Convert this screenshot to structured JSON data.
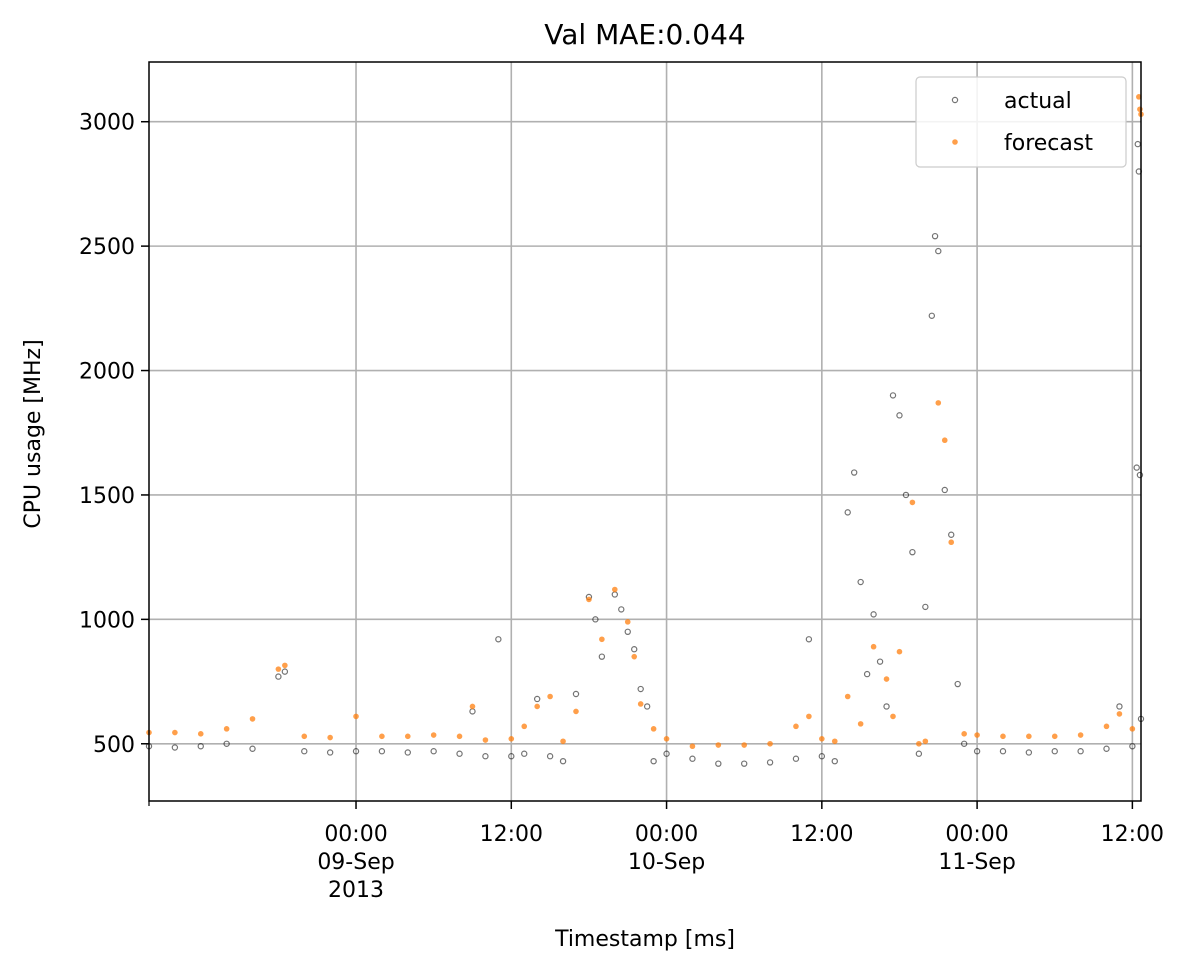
{
  "chart_data": {
    "type": "scatter",
    "title": "Val MAE:0.044",
    "xlabel": "Timestamp [ms]",
    "ylabel": "CPU usage [MHz]",
    "xlim": [
      "2013-09-08 08:00",
      "2013-09-11 12:40"
    ],
    "ylim": [
      270,
      3240
    ],
    "grid": true,
    "legend_position": "top-right",
    "x_ticks": [
      {
        "t": "2013-09-09 00:00",
        "lines": [
          "00:00",
          "09-Sep",
          "2013"
        ]
      },
      {
        "t": "2013-09-09 12:00",
        "lines": [
          "12:00"
        ]
      },
      {
        "t": "2013-09-10 00:00",
        "lines": [
          "00:00",
          "10-Sep"
        ]
      },
      {
        "t": "2013-09-10 12:00",
        "lines": [
          "12:00"
        ]
      },
      {
        "t": "2013-09-11 00:00",
        "lines": [
          "00:00",
          "11-Sep"
        ]
      },
      {
        "t": "2013-09-11 12:00",
        "lines": [
          "12:00"
        ]
      }
    ],
    "y_ticks": [
      500,
      1000,
      1500,
      2000,
      2500,
      3000
    ],
    "y_tick_labels": [
      "500",
      "1000",
      "1500",
      "2000",
      "2500",
      "3000"
    ],
    "series": [
      {
        "name": "actual",
        "color": "#000000",
        "marker": "hollow-circle",
        "points": [
          [
            "2013-09-08 08:00",
            490
          ],
          [
            "2013-09-08 10:00",
            485
          ],
          [
            "2013-09-08 12:00",
            490
          ],
          [
            "2013-09-08 14:00",
            500
          ],
          [
            "2013-09-08 16:00",
            480
          ],
          [
            "2013-09-08 18:00",
            770
          ],
          [
            "2013-09-08 18:30",
            790
          ],
          [
            "2013-09-08 20:00",
            470
          ],
          [
            "2013-09-08 22:00",
            465
          ],
          [
            "2013-09-09 00:00",
            470
          ],
          [
            "2013-09-09 02:00",
            470
          ],
          [
            "2013-09-09 04:00",
            465
          ],
          [
            "2013-09-09 06:00",
            470
          ],
          [
            "2013-09-09 08:00",
            460
          ],
          [
            "2013-09-09 09:00",
            630
          ],
          [
            "2013-09-09 10:00",
            450
          ],
          [
            "2013-09-09 11:00",
            920
          ],
          [
            "2013-09-09 12:00",
            450
          ],
          [
            "2013-09-09 13:00",
            460
          ],
          [
            "2013-09-09 14:00",
            680
          ],
          [
            "2013-09-09 15:00",
            450
          ],
          [
            "2013-09-09 16:00",
            430
          ],
          [
            "2013-09-09 17:00",
            700
          ],
          [
            "2013-09-09 18:00",
            1090
          ],
          [
            "2013-09-09 18:30",
            1000
          ],
          [
            "2013-09-09 19:00",
            850
          ],
          [
            "2013-09-09 20:00",
            1100
          ],
          [
            "2013-09-09 20:30",
            1040
          ],
          [
            "2013-09-09 21:00",
            950
          ],
          [
            "2013-09-09 21:30",
            880
          ],
          [
            "2013-09-09 22:00",
            720
          ],
          [
            "2013-09-09 22:30",
            650
          ],
          [
            "2013-09-09 23:00",
            430
          ],
          [
            "2013-09-10 00:00",
            460
          ],
          [
            "2013-09-10 02:00",
            440
          ],
          [
            "2013-09-10 04:00",
            420
          ],
          [
            "2013-09-10 06:00",
            420
          ],
          [
            "2013-09-10 08:00",
            425
          ],
          [
            "2013-09-10 10:00",
            440
          ],
          [
            "2013-09-10 11:00",
            920
          ],
          [
            "2013-09-10 12:00",
            450
          ],
          [
            "2013-09-10 13:00",
            430
          ],
          [
            "2013-09-10 14:00",
            1430
          ],
          [
            "2013-09-10 14:30",
            1590
          ],
          [
            "2013-09-10 15:00",
            1150
          ],
          [
            "2013-09-10 15:30",
            780
          ],
          [
            "2013-09-10 16:00",
            1020
          ],
          [
            "2013-09-10 16:30",
            830
          ],
          [
            "2013-09-10 17:00",
            650
          ],
          [
            "2013-09-10 17:30",
            1900
          ],
          [
            "2013-09-10 18:00",
            1820
          ],
          [
            "2013-09-10 18:30",
            1500
          ],
          [
            "2013-09-10 19:00",
            1270
          ],
          [
            "2013-09-10 19:30",
            460
          ],
          [
            "2013-09-10 20:00",
            1050
          ],
          [
            "2013-09-10 20:30",
            2220
          ],
          [
            "2013-09-10 20:45",
            2540
          ],
          [
            "2013-09-10 21:00",
            2480
          ],
          [
            "2013-09-10 21:30",
            1520
          ],
          [
            "2013-09-10 22:00",
            1340
          ],
          [
            "2013-09-10 22:30",
            740
          ],
          [
            "2013-09-10 23:00",
            500
          ],
          [
            "2013-09-11 00:00",
            470
          ],
          [
            "2013-09-11 02:00",
            470
          ],
          [
            "2013-09-11 04:00",
            465
          ],
          [
            "2013-09-11 06:00",
            470
          ],
          [
            "2013-09-11 08:00",
            470
          ],
          [
            "2013-09-11 10:00",
            480
          ],
          [
            "2013-09-11 11:00",
            650
          ],
          [
            "2013-09-11 12:00",
            490
          ],
          [
            "2013-09-11 12:20",
            1610
          ],
          [
            "2013-09-11 12:25",
            2910
          ],
          [
            "2013-09-11 12:30",
            2800
          ],
          [
            "2013-09-11 12:35",
            1580
          ],
          [
            "2013-09-11 12:40",
            600
          ]
        ]
      },
      {
        "name": "forecast",
        "color": "#ff7f0e",
        "marker": "filled-circle",
        "points": [
          [
            "2013-09-08 08:00",
            545
          ],
          [
            "2013-09-08 10:00",
            545
          ],
          [
            "2013-09-08 12:00",
            540
          ],
          [
            "2013-09-08 14:00",
            560
          ],
          [
            "2013-09-08 16:00",
            600
          ],
          [
            "2013-09-08 18:00",
            800
          ],
          [
            "2013-09-08 18:30",
            815
          ],
          [
            "2013-09-08 20:00",
            530
          ],
          [
            "2013-09-08 22:00",
            525
          ],
          [
            "2013-09-09 00:00",
            610
          ],
          [
            "2013-09-09 02:00",
            530
          ],
          [
            "2013-09-09 04:00",
            530
          ],
          [
            "2013-09-09 06:00",
            535
          ],
          [
            "2013-09-09 08:00",
            530
          ],
          [
            "2013-09-09 09:00",
            650
          ],
          [
            "2013-09-09 10:00",
            515
          ],
          [
            "2013-09-09 12:00",
            520
          ],
          [
            "2013-09-09 13:00",
            570
          ],
          [
            "2013-09-09 14:00",
            650
          ],
          [
            "2013-09-09 15:00",
            690
          ],
          [
            "2013-09-09 16:00",
            510
          ],
          [
            "2013-09-09 17:00",
            630
          ],
          [
            "2013-09-09 18:00",
            1080
          ],
          [
            "2013-09-09 19:00",
            920
          ],
          [
            "2013-09-09 20:00",
            1120
          ],
          [
            "2013-09-09 21:00",
            990
          ],
          [
            "2013-09-09 21:30",
            850
          ],
          [
            "2013-09-09 22:00",
            660
          ],
          [
            "2013-09-09 23:00",
            560
          ],
          [
            "2013-09-10 00:00",
            520
          ],
          [
            "2013-09-10 02:00",
            490
          ],
          [
            "2013-09-10 04:00",
            495
          ],
          [
            "2013-09-10 06:00",
            495
          ],
          [
            "2013-09-10 08:00",
            500
          ],
          [
            "2013-09-10 10:00",
            570
          ],
          [
            "2013-09-10 11:00",
            610
          ],
          [
            "2013-09-10 12:00",
            520
          ],
          [
            "2013-09-10 13:00",
            510
          ],
          [
            "2013-09-10 14:00",
            690
          ],
          [
            "2013-09-10 15:00",
            580
          ],
          [
            "2013-09-10 16:00",
            890
          ],
          [
            "2013-09-10 17:00",
            760
          ],
          [
            "2013-09-10 17:30",
            610
          ],
          [
            "2013-09-10 18:00",
            870
          ],
          [
            "2013-09-10 19:00",
            1470
          ],
          [
            "2013-09-10 19:30",
            500
          ],
          [
            "2013-09-10 20:00",
            510
          ],
          [
            "2013-09-10 21:00",
            1870
          ],
          [
            "2013-09-10 21:30",
            1720
          ],
          [
            "2013-09-10 22:00",
            1310
          ],
          [
            "2013-09-10 23:00",
            540
          ],
          [
            "2013-09-11 00:00",
            535
          ],
          [
            "2013-09-11 02:00",
            530
          ],
          [
            "2013-09-11 04:00",
            530
          ],
          [
            "2013-09-11 06:00",
            530
          ],
          [
            "2013-09-11 08:00",
            535
          ],
          [
            "2013-09-11 10:00",
            570
          ],
          [
            "2013-09-11 11:00",
            620
          ],
          [
            "2013-09-11 12:00",
            560
          ],
          [
            "2013-09-11 12:30",
            3100
          ],
          [
            "2013-09-11 12:35",
            3050
          ],
          [
            "2013-09-11 12:40",
            3030
          ]
        ]
      }
    ]
  }
}
